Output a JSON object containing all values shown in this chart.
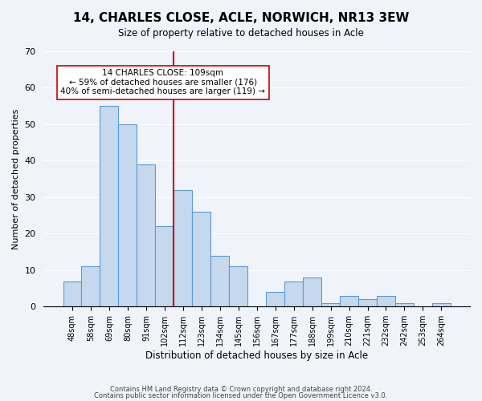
{
  "title": "14, CHARLES CLOSE, ACLE, NORWICH, NR13 3EW",
  "subtitle": "Size of property relative to detached houses in Acle",
  "xlabel": "Distribution of detached houses by size in Acle",
  "ylabel": "Number of detached properties",
  "bar_labels": [
    "48sqm",
    "58sqm",
    "69sqm",
    "80sqm",
    "91sqm",
    "102sqm",
    "112sqm",
    "123sqm",
    "134sqm",
    "145sqm",
    "156sqm",
    "167sqm",
    "177sqm",
    "188sqm",
    "199sqm",
    "210sqm",
    "221sqm",
    "232sqm",
    "242sqm",
    "253sqm",
    "264sqm"
  ],
  "bar_values": [
    7,
    11,
    55,
    50,
    39,
    22,
    32,
    26,
    14,
    11,
    0,
    4,
    7,
    8,
    1,
    3,
    2,
    3,
    1,
    0,
    1
  ],
  "bar_color": "#c5d8ed",
  "bar_edge_color": "#5b9bd5",
  "ylim": [
    0,
    70
  ],
  "yticks": [
    0,
    10,
    20,
    30,
    40,
    50,
    60,
    70
  ],
  "vline_x": 6,
  "vline_color": "#cc0000",
  "annotation_text": "14 CHARLES CLOSE: 109sqm\n← 59% of detached houses are smaller (176)\n40% of semi-detached houses are larger (119) →",
  "annotation_box_color": "#ffffff",
  "annotation_box_edge": "#cc0000",
  "footer_line1": "Contains HM Land Registry data © Crown copyright and database right 2024.",
  "footer_line2": "Contains public sector information licensed under the Open Government Licence v3.0.",
  "background_color": "#f0f4fa"
}
